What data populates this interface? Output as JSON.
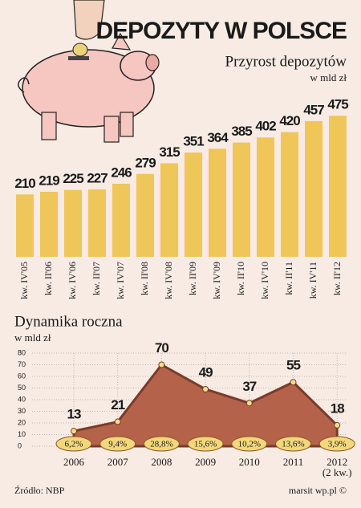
{
  "chart_data": [
    {
      "type": "bar",
      "title": "DEPOZYTY W POLSCE",
      "subtitle": "Przyrost depozytów",
      "unit": "w mld zł",
      "categories": [
        "kw. IV'05",
        "kw. II'06",
        "kw. IV'06",
        "kw. II'07",
        "kw. IV'07",
        "kw. II'08",
        "kw. IV'08",
        "kw. II'09",
        "kw. IV'09",
        "kw. II'10",
        "kw. IV'10",
        "kw. II'11",
        "kw. IV'11",
        "kw. II'12"
      ],
      "values": [
        210,
        219,
        225,
        227,
        246,
        279,
        315,
        351,
        364,
        385,
        402,
        420,
        457,
        475
      ],
      "color": "#efc65a"
    },
    {
      "type": "area",
      "title": "Dynamika roczna",
      "unit": "w mld zł",
      "categories": [
        "2006",
        "2007",
        "2008",
        "2009",
        "2010",
        "2011",
        "2012"
      ],
      "x_note": "(2 kw.)",
      "values": [
        13,
        21,
        70,
        49,
        37,
        55,
        18
      ],
      "growth": {
        "values": [
          6.2,
          9.4,
          28.8,
          15.6,
          10.2,
          13.6,
          3.9
        ],
        "value_labels": [
          "6,2%",
          "9,4%",
          "28,8%",
          "15,6%",
          "10,2%",
          "13,6%",
          "3,9%"
        ]
      },
      "color": "#b5624a",
      "line_color": "#7a3b2a",
      "ylim": [
        0,
        80
      ],
      "yticks": [
        0,
        10,
        20,
        30,
        40,
        50,
        60,
        70,
        80
      ],
      "grid": true
    }
  ],
  "source": "Źródło: NBP",
  "credit": "marsit wp.pl ©"
}
